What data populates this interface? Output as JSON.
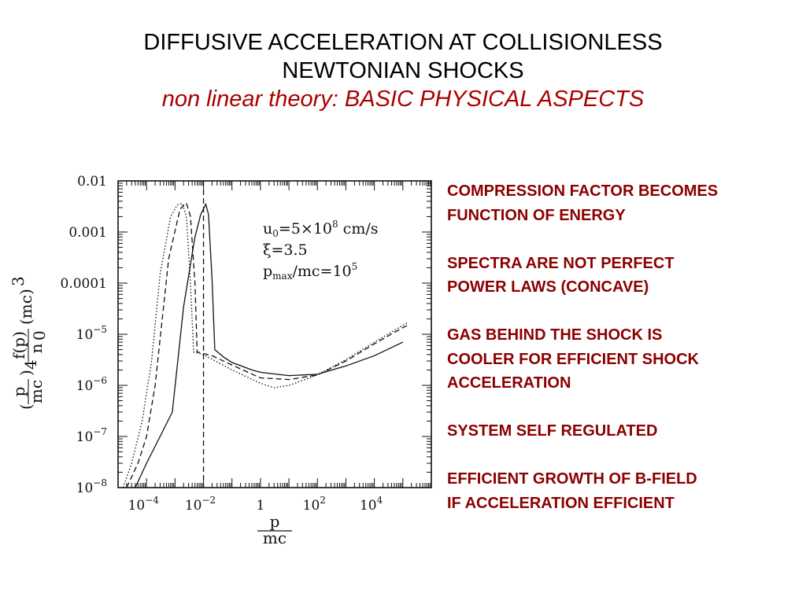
{
  "slide": {
    "title_line1": "DIFFUSIVE ACCELERATION AT COLLISIONLESS",
    "title_line2": "NEWTONIAN SHOCKS",
    "subtitle_a": "non linear theory: ",
    "subtitle_b": "BASIC PHYSICAL ASPECTS"
  },
  "bullets": [
    {
      "lines": [
        "COMPRESSION FACTOR BECOMES",
        "FUNCTION OF ENERGY"
      ]
    },
    {
      "lines": [
        "SPECTRA ARE NOT PERFECT",
        "POWER LAWS (CONCAVE)"
      ]
    },
    {
      "lines": [
        "GAS BEHIND THE SHOCK IS",
        "COOLER FOR EFFICIENT SHOCK",
        "ACCELERATION"
      ]
    },
    {
      "lines": [
        "SYSTEM SELF REGULATED"
      ]
    },
    {
      "lines": [
        "EFFICIENT GROWTH OF B-FIELD",
        "IF ACCELERATION EFFICIENT"
      ]
    }
  ],
  "colors": {
    "title": "#000000",
    "subtitle": "#aa0000",
    "bullets": "#8b0000"
  },
  "chart_data": {
    "type": "line",
    "x_scale": "log",
    "y_scale": "log",
    "xlim": [
      1e-05,
      1000000
    ],
    "ylim": [
      1e-08,
      0.01
    ],
    "x_ticks": [
      {
        "value": 0.0001,
        "mantissa": "10",
        "exp": "−4"
      },
      {
        "value": 0.01,
        "mantissa": "10",
        "exp": "−2"
      },
      {
        "value": 1,
        "mantissa": "1",
        "exp": ""
      },
      {
        "value": 100,
        "mantissa": "10",
        "exp": "2"
      },
      {
        "value": 10000,
        "mantissa": "10",
        "exp": "4"
      }
    ],
    "y_ticks": [
      {
        "value": 0.01,
        "mantissa": "0.01",
        "exp": ""
      },
      {
        "value": 0.001,
        "mantissa": "0.001",
        "exp": ""
      },
      {
        "value": 0.0001,
        "mantissa": "0.0001",
        "exp": ""
      },
      {
        "value": 1e-05,
        "mantissa": "10",
        "exp": "−5"
      },
      {
        "value": 1e-06,
        "mantissa": "10",
        "exp": "−6"
      },
      {
        "value": 1e-07,
        "mantissa": "10",
        "exp": "−7"
      },
      {
        "value": 1e-08,
        "mantissa": "10",
        "exp": "−8"
      }
    ],
    "xlabel": {
      "num": "p",
      "den": "mc"
    },
    "ylabel": {
      "open": "(",
      "p": "p",
      "mc": "mc",
      "close_pow": ")",
      "pow": "4",
      "fp": "f(p)",
      "n0": "n",
      "n0_sub": "0",
      "mc3": "(mc)",
      "mc3_pow": "3"
    },
    "annotations": {
      "u0": {
        "pre": "u",
        "sub": "0",
        "mid": "=5×10",
        "sup": "8",
        "post": " cm/s"
      },
      "xi": {
        "text": "ξ=3.5"
      },
      "pmax": {
        "pre": "p",
        "sub": "max",
        "mid": "/mc=10",
        "sup": "5"
      }
    },
    "vline": {
      "x": 0.01,
      "style": "dashed"
    },
    "grid": false,
    "series": [
      {
        "style": "solid",
        "points": [
          [
            4e-05,
            1e-08
          ],
          [
            0.0001,
            3e-08
          ],
          [
            0.0003,
            1e-07
          ],
          [
            0.0008,
            3e-07
          ],
          [
            0.002,
            3.5e-05
          ],
          [
            0.005,
            0.0008
          ],
          [
            0.008,
            0.0022
          ],
          [
            0.012,
            0.0035
          ],
          [
            0.015,
            0.0022
          ],
          [
            0.02,
            0.00012
          ],
          [
            0.025,
            5e-06
          ],
          [
            0.05,
            3.6e-06
          ],
          [
            0.1,
            2.8e-06
          ],
          [
            0.5,
            2e-06
          ],
          [
            1,
            1.8e-06
          ],
          [
            10,
            1.55e-06
          ],
          [
            100,
            1.65e-06
          ],
          [
            1000,
            2.4e-06
          ],
          [
            10000,
            3.8e-06
          ],
          [
            100000,
            7e-06
          ]
        ]
      },
      {
        "style": "dashed",
        "points": [
          [
            2e-05,
            1e-08
          ],
          [
            5e-05,
            3e-08
          ],
          [
            0.0001,
            1e-07
          ],
          [
            0.0002,
            1e-06
          ],
          [
            0.0006,
            0.0003
          ],
          [
            0.0015,
            0.0028
          ],
          [
            0.0025,
            0.0037
          ],
          [
            0.0035,
            0.002
          ],
          [
            0.005,
            0.0001
          ],
          [
            0.006,
            4.5e-06
          ],
          [
            0.02,
            3.8e-06
          ],
          [
            0.1,
            2.5e-06
          ],
          [
            1,
            1.4e-06
          ],
          [
            10,
            1.3e-06
          ],
          [
            100,
            1.6e-06
          ],
          [
            1000,
            3e-06
          ],
          [
            10000,
            6.5e-06
          ],
          [
            100000,
            1.35e-05
          ],
          [
            150000,
            1.5e-05
          ]
        ]
      },
      {
        "style": "dotted",
        "points": [
          [
            1.5e-05,
            1e-08
          ],
          [
            3e-05,
            3e-08
          ],
          [
            7e-05,
            2e-07
          ],
          [
            0.00015,
            3e-06
          ],
          [
            0.0003,
            0.00015
          ],
          [
            0.0007,
            0.002
          ],
          [
            0.0012,
            0.0034
          ],
          [
            0.0018,
            0.0036
          ],
          [
            0.0025,
            0.002
          ],
          [
            0.0035,
            0.0001
          ],
          [
            0.0045,
            4.5e-06
          ],
          [
            0.01,
            4e-06
          ],
          [
            0.1,
            2e-06
          ],
          [
            1,
            1.1e-06
          ],
          [
            3,
            9e-07
          ],
          [
            10,
            1e-06
          ],
          [
            100,
            1.6e-06
          ],
          [
            1000,
            3.2e-06
          ],
          [
            10000,
            7e-06
          ],
          [
            100000,
            1.5e-05
          ],
          [
            150000,
            1.7e-05
          ]
        ]
      }
    ]
  }
}
